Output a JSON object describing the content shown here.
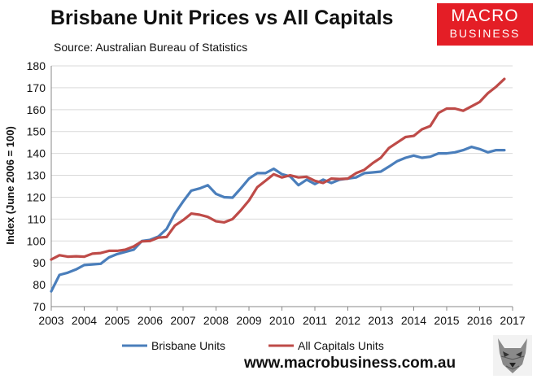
{
  "header": {
    "title": "Brisbane Unit Prices vs All Capitals",
    "subtitle": "Source: Australian Bureau of Statistics"
  },
  "logo": {
    "line1": "MACRO",
    "line2": "BUSINESS",
    "color": "#e41e26"
  },
  "footer": {
    "url": "www.macrobusiness.com.au"
  },
  "chart_data": {
    "type": "line",
    "title": "Brisbane Unit Prices vs All Capitals",
    "xlabel": "",
    "ylabel": "Index (June 2006 = 100)",
    "xlim": [
      2003,
      2017
    ],
    "ylim": [
      70,
      180
    ],
    "x_ticks": [
      "2003",
      "2004",
      "2005",
      "2006",
      "2007",
      "2008",
      "2009",
      "2010",
      "2011",
      "2012",
      "2013",
      "2014",
      "2015",
      "2016",
      "2017"
    ],
    "y_ticks": [
      "70",
      "80",
      "90",
      "100",
      "110",
      "120",
      "130",
      "140",
      "150",
      "160",
      "170",
      "180"
    ],
    "grid": "horizontal",
    "legend_position": "bottom",
    "series": [
      {
        "name": "Brisbane Units",
        "color": "#4a7ebb",
        "x": [
          2003.0,
          2003.25,
          2003.5,
          2003.75,
          2004.0,
          2004.25,
          2004.5,
          2004.75,
          2005.0,
          2005.25,
          2005.5,
          2005.75,
          2006.0,
          2006.25,
          2006.5,
          2006.75,
          2007.0,
          2007.25,
          2007.5,
          2007.75,
          2008.0,
          2008.25,
          2008.5,
          2008.75,
          2009.0,
          2009.25,
          2009.5,
          2009.75,
          2010.0,
          2010.25,
          2010.5,
          2010.75,
          2011.0,
          2011.25,
          2011.5,
          2011.75,
          2012.0,
          2012.25,
          2012.5,
          2012.75,
          2013.0,
          2013.25,
          2013.5,
          2013.75,
          2014.0,
          2014.25,
          2014.5,
          2014.75,
          2015.0,
          2015.25,
          2015.5,
          2015.75,
          2016.0,
          2016.25,
          2016.5,
          2016.75
        ],
        "values": [
          77,
          84.5,
          85.5,
          87,
          89,
          89.3,
          89.6,
          92.5,
          94,
          95,
          96,
          100,
          100.5,
          102,
          105.5,
          112.5,
          118,
          123,
          124,
          125.5,
          121.5,
          120,
          119.8,
          124,
          128.5,
          131,
          131,
          133,
          130.5,
          129.5,
          125.5,
          128,
          126,
          128,
          126.5,
          128,
          128.5,
          129,
          131,
          131.3,
          131.7,
          134,
          136.5,
          138,
          139,
          138,
          138.5,
          140,
          140,
          140.5,
          141.5,
          143,
          142,
          140.5,
          141.5,
          141.5
        ]
      },
      {
        "name": "All Capitals Units",
        "color": "#be4b48",
        "x": [
          2003.0,
          2003.25,
          2003.5,
          2003.75,
          2004.0,
          2004.25,
          2004.5,
          2004.75,
          2005.0,
          2005.25,
          2005.5,
          2005.75,
          2006.0,
          2006.25,
          2006.5,
          2006.75,
          2007.0,
          2007.25,
          2007.5,
          2007.75,
          2008.0,
          2008.25,
          2008.5,
          2008.75,
          2009.0,
          2009.25,
          2009.5,
          2009.75,
          2010.0,
          2010.25,
          2010.5,
          2010.75,
          2011.0,
          2011.25,
          2011.5,
          2011.75,
          2012.0,
          2012.25,
          2012.5,
          2012.75,
          2013.0,
          2013.25,
          2013.5,
          2013.75,
          2014.0,
          2014.25,
          2014.5,
          2014.75,
          2015.0,
          2015.25,
          2015.5,
          2015.75,
          2016.0,
          2016.25,
          2016.5,
          2016.75
        ],
        "values": [
          91.5,
          93.5,
          92.8,
          93,
          92.8,
          94.2,
          94.5,
          95.5,
          95.5,
          96,
          97.5,
          99.8,
          100,
          101.5,
          101.8,
          107,
          109.5,
          112.5,
          112,
          111,
          109,
          108.5,
          110,
          114,
          118.5,
          124.5,
          127.5,
          130.5,
          129,
          130,
          129,
          129.3,
          127.5,
          126.5,
          128.5,
          128.3,
          128.5,
          131,
          132.5,
          135.5,
          138,
          142.5,
          145,
          147.5,
          148,
          151,
          152.5,
          158.5,
          160.5,
          160.5,
          159.5,
          161.5,
          163.5,
          167.5,
          170.5,
          174
        ]
      }
    ]
  }
}
